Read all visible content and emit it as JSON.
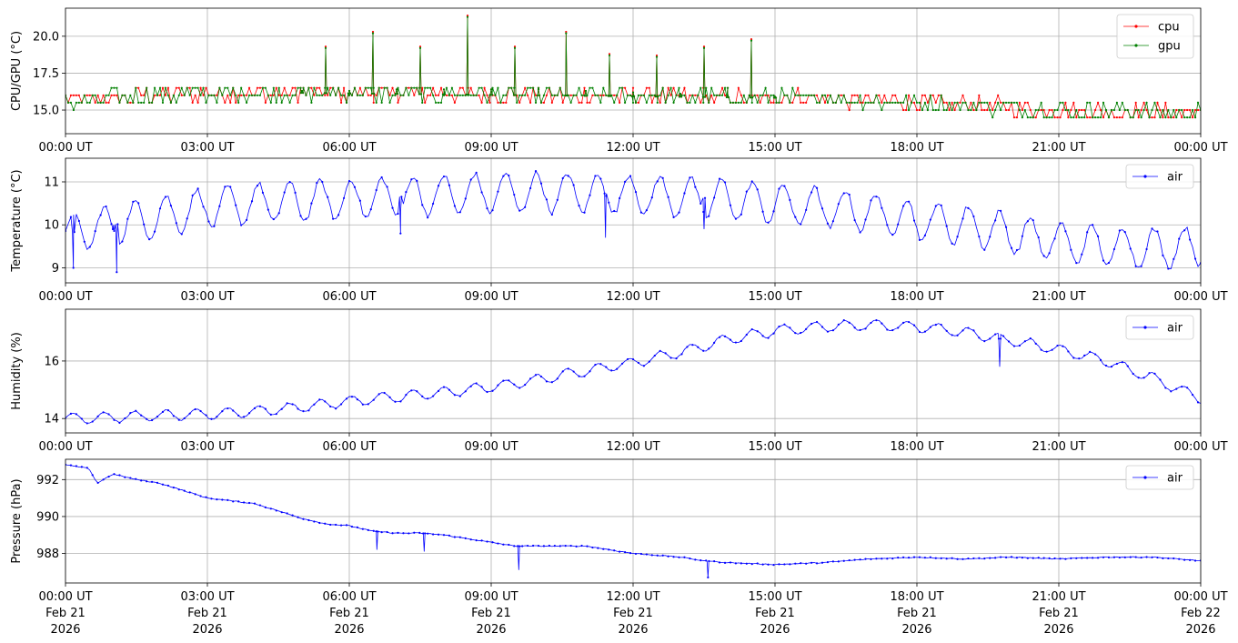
{
  "figure": {
    "background": "#ffffff"
  },
  "x_tick_labels": [
    "00:00 UT",
    "03:00 UT",
    "06:00 UT",
    "09:00 UT",
    "12:00 UT",
    "15:00 UT",
    "18:00 UT",
    "21:00 UT",
    "00:00 UT"
  ],
  "x_tick_date_lines": [
    "Feb 21",
    "Feb 21",
    "Feb 21",
    "Feb 21",
    "Feb 21",
    "Feb 21",
    "Feb 21",
    "Feb 21",
    "Feb 22"
  ],
  "x_tick_year_lines": [
    "2026",
    "2026",
    "2026",
    "2026",
    "2026",
    "2026",
    "2026",
    "2026",
    "2026"
  ],
  "chart_data": [
    {
      "type": "line",
      "ylabel": "CPU/GPU (°C)",
      "ylim": [
        13.4,
        21.9
      ],
      "yticks": [
        15.0,
        17.5,
        20.0
      ],
      "ytick_labels": [
        "15.0",
        "17.5",
        "20.0"
      ],
      "grid": true,
      "legend": "top-right",
      "x_range": [
        "2026-02-21 00:00 UT",
        "2026-02-22 00:00 UT"
      ],
      "series": [
        {
          "name": "cpu",
          "color": "#ff0000",
          "points": [
            [
              "00:00",
              15.6
            ],
            [
              "01:00",
              15.8
            ],
            [
              "02:00",
              16.0
            ],
            [
              "03:00",
              16.1
            ],
            [
              "04:00",
              16.2
            ],
            [
              "05:00",
              16.3
            ],
            [
              "05:30",
              19.3
            ],
            [
              "06:00",
              16.3
            ],
            [
              "06:30",
              20.3
            ],
            [
              "07:00",
              16.4
            ],
            [
              "07:30",
              19.3
            ],
            [
              "08:00",
              16.4
            ],
            [
              "08:30",
              21.4
            ],
            [
              "09:00",
              16.4
            ],
            [
              "09:30",
              19.3
            ],
            [
              "10:00",
              16.4
            ],
            [
              "10:35",
              20.3
            ],
            [
              "11:00",
              16.3
            ],
            [
              "11:30",
              18.8
            ],
            [
              "12:00",
              16.2
            ],
            [
              "12:30",
              18.7
            ],
            [
              "13:00",
              16.1
            ],
            [
              "13:30",
              19.3
            ],
            [
              "14:00",
              16.0
            ],
            [
              "14:30",
              19.8
            ],
            [
              "15:00",
              15.9
            ],
            [
              "16:00",
              15.8
            ],
            [
              "17:00",
              15.6
            ],
            [
              "18:00",
              15.5
            ],
            [
              "19:00",
              15.3
            ],
            [
              "20:00",
              15.2
            ],
            [
              "21:00",
              15.0
            ],
            [
              "22:00",
              14.9
            ],
            [
              "23:00",
              14.8
            ],
            [
              "24:00",
              14.8
            ]
          ]
        },
        {
          "name": "gpu",
          "color": "#008000",
          "points": [
            [
              "00:00",
              15.6
            ],
            [
              "01:00",
              15.8
            ],
            [
              "02:00",
              16.0
            ],
            [
              "03:00",
              16.1
            ],
            [
              "04:00",
              16.2
            ],
            [
              "05:00",
              16.3
            ],
            [
              "05:30",
              19.2
            ],
            [
              "06:00",
              16.3
            ],
            [
              "06:30",
              20.2
            ],
            [
              "07:00",
              16.4
            ],
            [
              "07:30",
              19.2
            ],
            [
              "08:00",
              16.4
            ],
            [
              "08:30",
              21.3
            ],
            [
              "09:00",
              16.4
            ],
            [
              "09:30",
              19.2
            ],
            [
              "10:00",
              16.4
            ],
            [
              "10:35",
              20.2
            ],
            [
              "11:00",
              16.3
            ],
            [
              "11:30",
              18.7
            ],
            [
              "12:00",
              16.2
            ],
            [
              "12:30",
              18.6
            ],
            [
              "13:00",
              16.1
            ],
            [
              "13:30",
              19.2
            ],
            [
              "14:00",
              16.0
            ],
            [
              "14:30",
              19.7
            ],
            [
              "15:00",
              15.9
            ],
            [
              "16:00",
              15.8
            ],
            [
              "17:00",
              15.6
            ],
            [
              "18:00",
              15.5
            ],
            [
              "19:00",
              15.3
            ],
            [
              "20:00",
              15.2
            ],
            [
              "21:00",
              15.0
            ],
            [
              "22:00",
              14.9
            ],
            [
              "23:00",
              14.9
            ],
            [
              "24:00",
              14.8
            ]
          ]
        }
      ]
    },
    {
      "type": "line",
      "ylabel": "Temperature (°C)",
      "ylim": [
        8.65,
        11.55
      ],
      "yticks": [
        9,
        10,
        11
      ],
      "ytick_labels": [
        "9",
        "10",
        "11"
      ],
      "grid": true,
      "legend": "top-right",
      "x_range": [
        "2026-02-21 00:00 UT",
        "2026-02-22 00:00 UT"
      ],
      "series": [
        {
          "name": "air",
          "color": "#0000ff",
          "points": [
            [
              "00:00",
              9.8
            ],
            [
              "00:10",
              9.0
            ],
            [
              "01:00",
              9.9
            ],
            [
              "01:05",
              8.9
            ],
            [
              "02:00",
              10.2
            ],
            [
              "03:00",
              10.4
            ],
            [
              "04:00",
              10.5
            ],
            [
              "05:00",
              10.55
            ],
            [
              "06:00",
              10.6
            ],
            [
              "07:00",
              10.65
            ],
            [
              "07:05",
              9.8
            ],
            [
              "08:00",
              10.7
            ],
            [
              "09:00",
              10.75
            ],
            [
              "10:00",
              10.75
            ],
            [
              "11:00",
              10.75
            ],
            [
              "11:25",
              9.7
            ],
            [
              "12:00",
              10.7
            ],
            [
              "13:00",
              10.65
            ],
            [
              "13:30",
              9.9
            ],
            [
              "14:00",
              10.6
            ],
            [
              "15:00",
              10.5
            ],
            [
              "16:00",
              10.4
            ],
            [
              "17:00",
              10.3
            ],
            [
              "18:00",
              10.1
            ],
            [
              "19:00",
              10.0
            ],
            [
              "20:00",
              9.8
            ],
            [
              "21:00",
              9.6
            ],
            [
              "22:00",
              9.5
            ],
            [
              "23:00",
              9.45
            ],
            [
              "24:00",
              9.5
            ]
          ]
        }
      ]
    },
    {
      "type": "line",
      "ylabel": "Humidity (%)",
      "ylim": [
        13.5,
        17.8
      ],
      "yticks": [
        14,
        16
      ],
      "ytick_labels": [
        "14",
        "16"
      ],
      "grid": true,
      "legend": "top-right",
      "x_range": [
        "2026-02-21 00:00 UT",
        "2026-02-22 00:00 UT"
      ],
      "series": [
        {
          "name": "air",
          "color": "#0000ff",
          "points": [
            [
              "00:00",
              14.0
            ],
            [
              "01:00",
              14.05
            ],
            [
              "02:00",
              14.1
            ],
            [
              "03:00",
              14.15
            ],
            [
              "04:00",
              14.25
            ],
            [
              "05:00",
              14.4
            ],
            [
              "06:00",
              14.6
            ],
            [
              "07:00",
              14.75
            ],
            [
              "08:00",
              14.9
            ],
            [
              "09:00",
              15.1
            ],
            [
              "10:00",
              15.35
            ],
            [
              "11:00",
              15.65
            ],
            [
              "12:00",
              15.95
            ],
            [
              "13:00",
              16.3
            ],
            [
              "14:00",
              16.75
            ],
            [
              "15:00",
              17.05
            ],
            [
              "16:00",
              17.2
            ],
            [
              "17:00",
              17.25
            ],
            [
              "18:00",
              17.2
            ],
            [
              "19:00",
              17.0
            ],
            [
              "19:45",
              15.8
            ],
            [
              "20:00",
              16.7
            ],
            [
              "21:00",
              16.4
            ],
            [
              "22:00",
              16.0
            ],
            [
              "23:00",
              15.4
            ],
            [
              "24:00",
              14.7
            ]
          ]
        }
      ]
    },
    {
      "type": "line",
      "ylabel": "Pressure (hPa)",
      "ylim": [
        986.4,
        993.1
      ],
      "yticks": [
        988,
        990,
        992
      ],
      "ytick_labels": [
        "988",
        "990",
        "992"
      ],
      "grid": true,
      "legend": "top-right",
      "x_range": [
        "2026-02-21 00:00 UT",
        "2026-02-22 00:00 UT"
      ],
      "series": [
        {
          "name": "air",
          "color": "#0000ff",
          "points": [
            [
              "00:00",
              992.8
            ],
            [
              "00:30",
              992.6
            ],
            [
              "00:40",
              991.8
            ],
            [
              "01:00",
              992.3
            ],
            [
              "01:30",
              992.0
            ],
            [
              "02:00",
              991.8
            ],
            [
              "03:00",
              991.0
            ],
            [
              "04:00",
              990.7
            ],
            [
              "05:00",
              989.9
            ],
            [
              "05:30",
              989.6
            ],
            [
              "06:00",
              989.5
            ],
            [
              "06:30",
              989.2
            ],
            [
              "06:35",
              988.2
            ],
            [
              "07:00",
              989.1
            ],
            [
              "07:30",
              989.1
            ],
            [
              "07:35",
              988.1
            ],
            [
              "08:00",
              989.0
            ],
            [
              "09:00",
              988.6
            ],
            [
              "09:30",
              988.4
            ],
            [
              "09:35",
              987.1
            ],
            [
              "10:00",
              988.4
            ],
            [
              "11:00",
              988.4
            ],
            [
              "12:00",
              988.0
            ],
            [
              "13:00",
              987.8
            ],
            [
              "13:30",
              987.6
            ],
            [
              "13:35",
              986.7
            ],
            [
              "14:00",
              987.5
            ],
            [
              "15:00",
              987.4
            ],
            [
              "16:00",
              987.5
            ],
            [
              "17:00",
              987.7
            ],
            [
              "18:00",
              987.8
            ],
            [
              "19:00",
              987.7
            ],
            [
              "20:00",
              987.8
            ],
            [
              "21:00",
              987.7
            ],
            [
              "22:00",
              987.8
            ],
            [
              "23:00",
              987.8
            ],
            [
              "24:00",
              987.6
            ]
          ]
        }
      ]
    }
  ]
}
